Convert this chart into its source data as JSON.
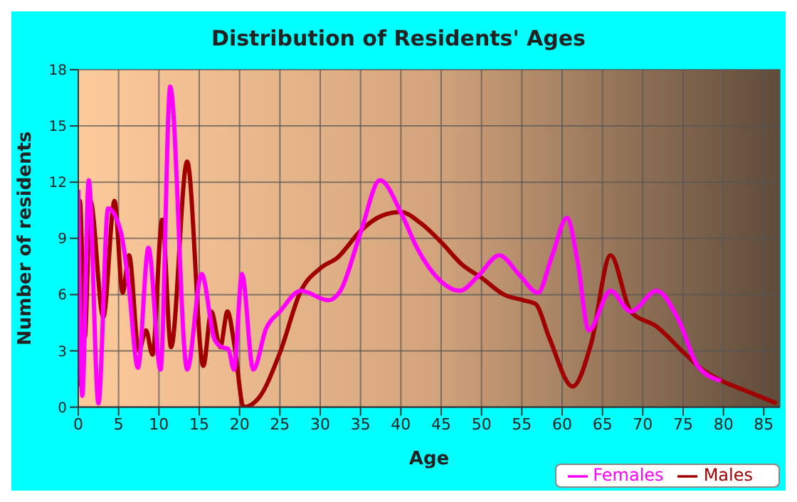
{
  "chart_data": {
    "type": "line",
    "title": "Distribution of Residents' Ages",
    "xlabel": "Age",
    "ylabel": "Number of residents",
    "xlim": [
      0,
      87
    ],
    "xticks": [
      0,
      5,
      10,
      15,
      20,
      25,
      30,
      35,
      40,
      45,
      50,
      55,
      60,
      65,
      70,
      75,
      80,
      85
    ],
    "ylim": [
      0,
      18
    ],
    "yticks": [
      0,
      3,
      6,
      9,
      12,
      15,
      18
    ],
    "grid": true,
    "legend": "bottom right",
    "marker": "none",
    "line_style": "solid",
    "series": [
      {
        "name": "Males",
        "color": "#a00000",
        "x": [
          0,
          0.2,
          0.8,
          1.5,
          3.1,
          4.5,
          5.5,
          6.3,
          7.5,
          8.4,
          9.2,
          10.4,
          11.5,
          13.5,
          15.5,
          16.5,
          17.6,
          18.5,
          19.4,
          20.5,
          22.4,
          25,
          27.6,
          30,
          32.2,
          35,
          37.6,
          40,
          42.5,
          45,
          47.6,
          50,
          52.8,
          55.2,
          56.7,
          58.4,
          61.3,
          63.6,
          66,
          68.5,
          71.7,
          75.1,
          77.4,
          80.3,
          82.6,
          86.6
        ],
        "values": [
          1.1,
          11,
          3.7,
          11,
          4.8,
          11,
          6.1,
          8.1,
          3,
          4.1,
          2.8,
          10,
          3.2,
          13.1,
          2.2,
          5.1,
          3.2,
          5.1,
          3.2,
          0,
          0.5,
          2.9,
          6.2,
          7.4,
          8,
          9.4,
          10.2,
          10.4,
          9.8,
          8.8,
          7.6,
          6.9,
          6,
          5.7,
          5.5,
          3.7,
          1.1,
          3.4,
          8.1,
          5.1,
          4.3,
          2.9,
          2,
          1.3,
          0.9,
          0.2
        ]
      },
      {
        "name": "Females",
        "color": "#ff00ff",
        "x": [
          0,
          0.5,
          1.3,
          2.5,
          3.7,
          5.3,
          6.2,
          7.4,
          8.7,
          10.2,
          11.4,
          13.5,
          15.3,
          16.9,
          17.8,
          18.6,
          19.3,
          20.3,
          21.7,
          23.3,
          25,
          27.6,
          31,
          32.5,
          35,
          37.4,
          40.2,
          42,
          45,
          47.3,
          49.6,
          52.2,
          54.8,
          57,
          58.7,
          60.6,
          61.9,
          63.3,
          66,
          68.5,
          71.7,
          74.5,
          76.8,
          79.7
        ],
        "values": [
          11.6,
          0.6,
          12.1,
          0.2,
          10.6,
          9.3,
          6.7,
          2.1,
          8.5,
          2,
          17.1,
          2,
          7.1,
          3.6,
          3.2,
          3.1,
          2,
          7.1,
          2,
          4.2,
          5.1,
          6.2,
          5.7,
          6.2,
          9.3,
          12.1,
          10.2,
          8.5,
          6.7,
          6.2,
          7,
          8.1,
          7,
          6.1,
          8,
          10.1,
          7.8,
          4.1,
          6.2,
          5.1,
          6.2,
          4.6,
          2.2,
          1.4
        ]
      }
    ]
  }
}
